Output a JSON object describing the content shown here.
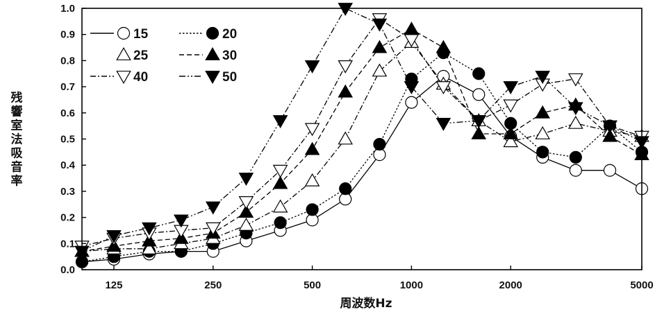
{
  "chart_data": {
    "type": "line",
    "title": "",
    "xlabel": "周波数Hz",
    "ylabel": "残響室法吸音率",
    "x_scale": "log",
    "xlim": [
      100,
      5000
    ],
    "ylim": [
      0,
      1.0
    ],
    "x_ticks": [
      {
        "value": 125,
        "label": "125"
      },
      {
        "value": 250,
        "label": "250"
      },
      {
        "value": 500,
        "label": "500"
      },
      {
        "value": 1000,
        "label": "1000"
      },
      {
        "value": 2000,
        "label": "2000"
      },
      {
        "value": 5000,
        "label": "5000"
      }
    ],
    "y_ticks": [
      {
        "value": 0.0,
        "label": "0.0"
      },
      {
        "value": 0.1,
        "label": "0.1"
      },
      {
        "value": 0.2,
        "label": "0.2"
      },
      {
        "value": 0.3,
        "label": "0.3"
      },
      {
        "value": 0.4,
        "label": "0.4"
      },
      {
        "value": 0.5,
        "label": "0.5"
      },
      {
        "value": 0.6,
        "label": "0.6"
      },
      {
        "value": 0.7,
        "label": "0.7"
      },
      {
        "value": 0.8,
        "label": "0.8"
      },
      {
        "value": 0.9,
        "label": "0.9"
      },
      {
        "value": 1.0,
        "label": "1.0"
      }
    ],
    "grid": false,
    "legend_position": "top-left",
    "x": [
      100,
      125,
      160,
      200,
      250,
      315,
      400,
      500,
      630,
      800,
      1000,
      1250,
      1600,
      2000,
      2500,
      3150,
      4000,
      5000
    ],
    "series": [
      {
        "name": "15",
        "line_style": "solid",
        "marker": "circle-open",
        "values": [
          0.03,
          0.04,
          0.06,
          0.07,
          0.07,
          0.11,
          0.15,
          0.19,
          0.27,
          0.44,
          0.64,
          0.74,
          0.67,
          0.51,
          0.43,
          0.38,
          0.38,
          0.31
        ]
      },
      {
        "name": "20",
        "line_style": "dotted",
        "marker": "circle-filled",
        "values": [
          0.03,
          0.05,
          0.07,
          0.07,
          0.1,
          0.14,
          0.18,
          0.23,
          0.31,
          0.48,
          0.73,
          0.83,
          0.75,
          0.56,
          0.45,
          0.43,
          0.55,
          0.45
        ]
      },
      {
        "name": "25",
        "line_style": "dashdot",
        "marker": "triangle-up-open",
        "values": [
          0.07,
          0.08,
          0.08,
          0.1,
          0.12,
          0.17,
          0.24,
          0.34,
          0.5,
          0.76,
          0.87,
          0.71,
          0.57,
          0.49,
          0.52,
          0.56,
          0.53,
          0.51
        ]
      },
      {
        "name": "30",
        "line_style": "dashed",
        "marker": "triangle-up-filled",
        "values": [
          0.07,
          0.09,
          0.11,
          0.12,
          0.14,
          0.22,
          0.33,
          0.46,
          0.68,
          0.85,
          0.92,
          0.85,
          0.52,
          0.52,
          0.6,
          0.63,
          0.51,
          0.44
        ]
      },
      {
        "name": "40",
        "line_style": "dashdot",
        "marker": "triangle-down-open",
        "values": [
          0.09,
          0.12,
          0.14,
          0.15,
          0.16,
          0.26,
          0.38,
          0.54,
          0.78,
          0.96,
          0.88,
          0.7,
          0.57,
          0.63,
          0.71,
          0.73,
          0.55,
          0.51
        ]
      },
      {
        "name": "50",
        "line_style": "dashdotdot",
        "marker": "triangle-down-filled",
        "values": [
          0.07,
          0.13,
          0.16,
          0.19,
          0.24,
          0.35,
          0.57,
          0.78,
          1.0,
          0.94,
          0.7,
          0.56,
          0.57,
          0.7,
          0.74,
          0.62,
          0.55,
          0.49
        ]
      }
    ]
  }
}
